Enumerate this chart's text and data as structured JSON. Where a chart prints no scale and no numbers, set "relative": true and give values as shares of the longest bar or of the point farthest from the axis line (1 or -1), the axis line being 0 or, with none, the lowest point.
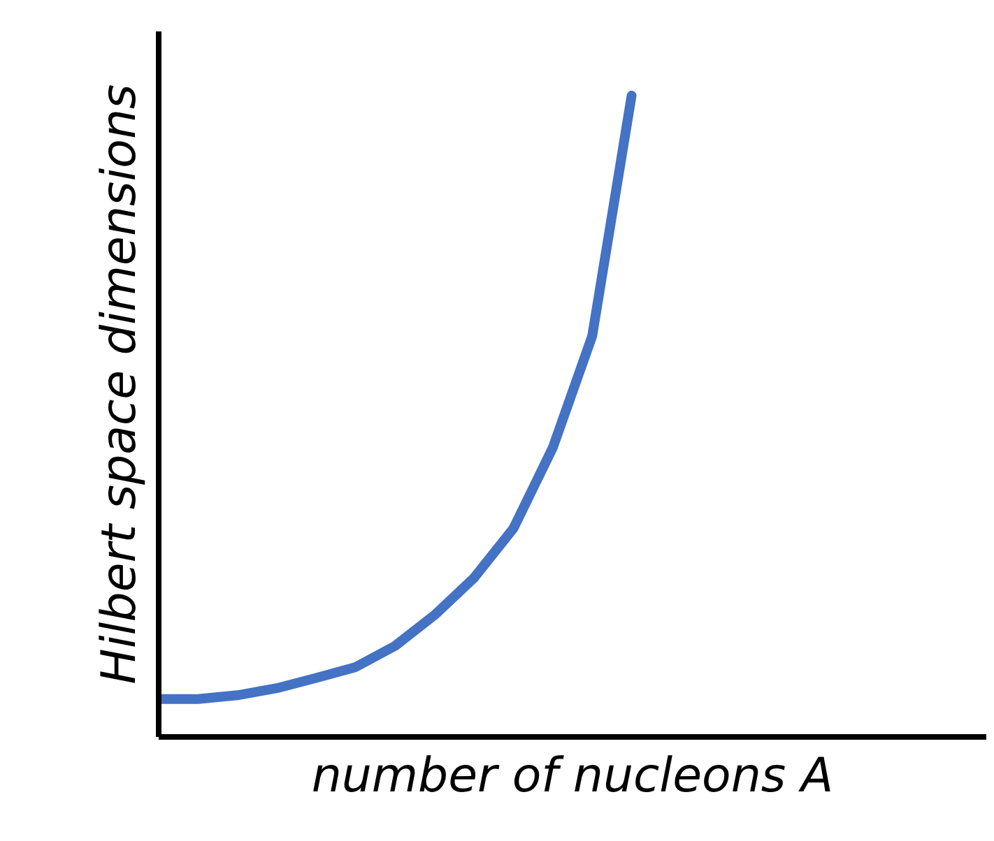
{
  "chart_data": {
    "type": "line",
    "relative": true,
    "xlabel": "number of nucleons A",
    "ylabel": "Hilbert space dimensions",
    "categories": [
      null,
      null,
      null,
      null,
      null,
      null,
      null,
      null,
      null,
      null,
      null,
      null,
      null,
      null,
      null,
      null,
      null,
      null,
      null,
      null,
      null,
      null
    ],
    "series": [
      {
        "color": "#4472c4",
        "values": [
          0.059,
          0.059,
          0.065,
          0.076,
          0.092,
          0.109,
          0.142,
          0.19,
          0.248,
          0.325,
          0.451,
          0.625,
          1.0,
          null,
          null,
          null,
          null,
          null,
          null,
          null,
          null,
          null
        ]
      }
    ],
    "marker": "none",
    "line_style": "solid"
  }
}
